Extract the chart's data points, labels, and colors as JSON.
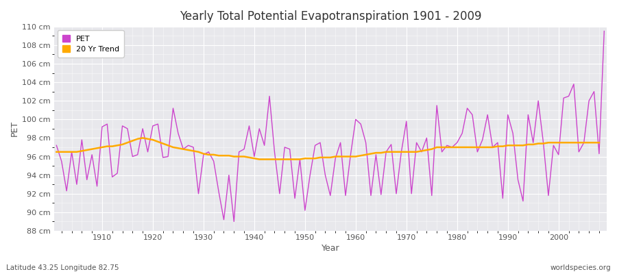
{
  "title": "Yearly Total Potential Evapotranspiration 1901 - 2009",
  "xlabel": "Year",
  "ylabel": "PET",
  "subtitle_left": "Latitude 43.25 Longitude 82.75",
  "subtitle_right": "worldspecies.org",
  "ylim": [
    88,
    110
  ],
  "ytick_step": 2,
  "pet_color": "#cc44cc",
  "trend_color": "#ffaa00",
  "fig_bg_color": "#ffffff",
  "plot_bg_color": "#e8e8ec",
  "grid_color": "#ffffff",
  "years": [
    1901,
    1902,
    1903,
    1904,
    1905,
    1906,
    1907,
    1908,
    1909,
    1910,
    1911,
    1912,
    1913,
    1914,
    1915,
    1916,
    1917,
    1918,
    1919,
    1920,
    1921,
    1922,
    1923,
    1924,
    1925,
    1926,
    1927,
    1928,
    1929,
    1930,
    1931,
    1932,
    1933,
    1934,
    1935,
    1936,
    1937,
    1938,
    1939,
    1940,
    1941,
    1942,
    1943,
    1944,
    1945,
    1946,
    1947,
    1948,
    1949,
    1950,
    1951,
    1952,
    1953,
    1954,
    1955,
    1956,
    1957,
    1958,
    1959,
    1960,
    1961,
    1962,
    1963,
    1964,
    1965,
    1966,
    1967,
    1968,
    1969,
    1970,
    1971,
    1972,
    1973,
    1974,
    1975,
    1976,
    1977,
    1978,
    1979,
    1980,
    1981,
    1982,
    1983,
    1984,
    1985,
    1986,
    1987,
    1988,
    1989,
    1990,
    1991,
    1992,
    1993,
    1994,
    1995,
    1996,
    1997,
    1998,
    1999,
    2000,
    2001,
    2002,
    2003,
    2004,
    2005,
    2006,
    2007,
    2008,
    2009
  ],
  "pet_values": [
    97.2,
    95.5,
    92.3,
    96.5,
    93.0,
    97.8,
    93.5,
    96.2,
    92.8,
    99.2,
    99.5,
    93.8,
    94.2,
    99.3,
    99.0,
    96.0,
    96.2,
    99.0,
    96.5,
    99.3,
    99.5,
    95.9,
    96.0,
    101.2,
    98.5,
    96.8,
    97.2,
    97.0,
    92.0,
    96.2,
    96.5,
    95.5,
    92.2,
    89.2,
    94.0,
    89.0,
    96.5,
    96.8,
    99.3,
    96.0,
    99.0,
    97.2,
    102.5,
    96.5,
    92.0,
    97.0,
    96.8,
    91.5,
    95.7,
    90.2,
    94.0,
    97.2,
    97.5,
    94.0,
    91.8,
    95.8,
    97.5,
    91.8,
    96.2,
    100.0,
    99.5,
    97.5,
    91.8,
    96.2,
    91.9,
    96.5,
    97.3,
    92.0,
    96.5,
    99.8,
    92.0,
    97.5,
    96.5,
    98.0,
    91.8,
    101.5,
    96.5,
    97.2,
    97.0,
    97.5,
    98.5,
    101.2,
    100.5,
    96.5,
    97.8,
    100.5,
    97.0,
    97.5,
    91.5,
    100.5,
    98.5,
    93.5,
    91.2,
    100.5,
    97.5,
    102.0,
    97.5,
    91.8,
    97.2,
    96.2,
    102.3,
    102.5,
    103.8,
    96.5,
    97.5,
    102.0,
    103.0,
    96.3,
    109.5
  ],
  "trend_values": [
    96.5,
    96.5,
    96.5,
    96.5,
    96.5,
    96.6,
    96.7,
    96.8,
    96.9,
    97.0,
    97.1,
    97.1,
    97.2,
    97.3,
    97.5,
    97.7,
    97.9,
    98.0,
    97.9,
    97.8,
    97.6,
    97.4,
    97.2,
    97.0,
    96.9,
    96.8,
    96.7,
    96.6,
    96.5,
    96.3,
    96.2,
    96.2,
    96.1,
    96.1,
    96.1,
    96.0,
    96.0,
    96.0,
    95.9,
    95.8,
    95.7,
    95.7,
    95.7,
    95.7,
    95.7,
    95.7,
    95.7,
    95.7,
    95.7,
    95.8,
    95.8,
    95.8,
    95.9,
    95.9,
    95.9,
    96.0,
    96.0,
    96.0,
    96.0,
    96.0,
    96.1,
    96.2,
    96.3,
    96.4,
    96.4,
    96.5,
    96.5,
    96.5,
    96.5,
    96.5,
    96.5,
    96.5,
    96.6,
    96.7,
    96.8,
    97.0,
    97.0,
    97.0,
    97.0,
    97.0,
    97.0,
    97.0,
    97.0,
    97.0,
    97.0,
    97.0,
    97.0,
    97.1,
    97.1,
    97.2,
    97.2,
    97.2,
    97.2,
    97.3,
    97.3,
    97.4,
    97.4,
    97.5,
    97.5,
    97.5,
    97.5,
    97.5,
    97.5,
    97.5,
    97.5,
    97.5,
    97.5,
    97.5,
    null
  ]
}
